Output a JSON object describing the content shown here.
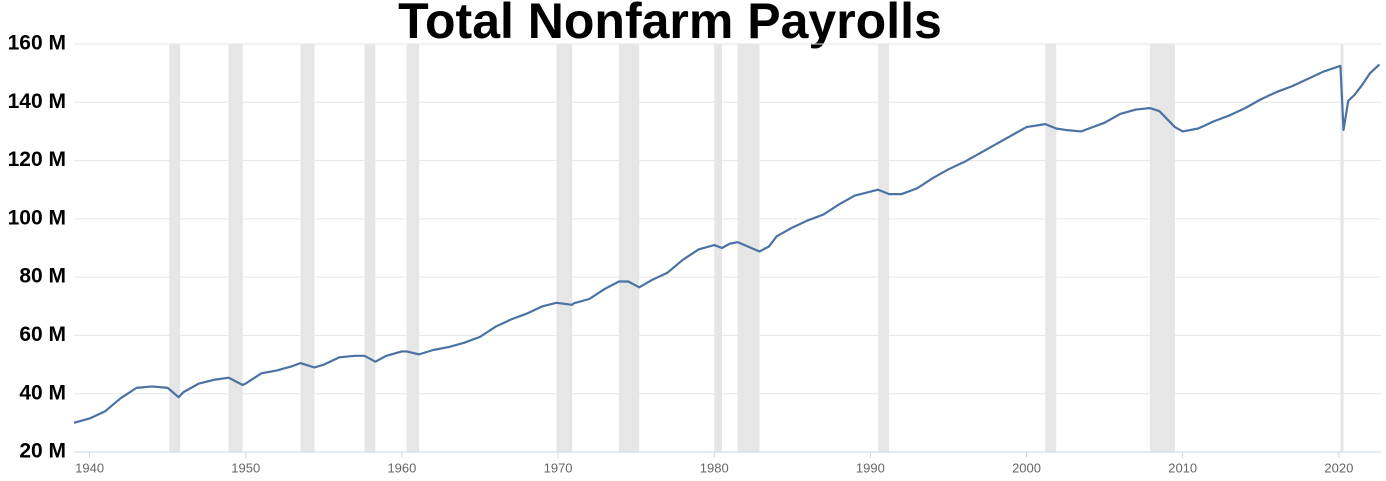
{
  "chart_data": {
    "type": "line",
    "title": "Total Nonfarm Payrolls",
    "x": [
      1939,
      1940,
      1941,
      1942,
      1943,
      1944,
      1945,
      1945.7,
      1946,
      1947,
      1948,
      1948.9,
      1949.8,
      1950,
      1951,
      1952,
      1953,
      1953.5,
      1954.4,
      1955,
      1956,
      1957,
      1957.6,
      1958.3,
      1959,
      1960,
      1960.3,
      1961.1,
      1962,
      1963,
      1964,
      1965,
      1966,
      1967,
      1968,
      1969,
      1969.9,
      1970.9,
      1971,
      1972,
      1973,
      1973.9,
      1974.5,
      1975.2,
      1976,
      1977,
      1978,
      1979,
      1980,
      1980.5,
      1981,
      1981.5,
      1982.9,
      1983.5,
      1984,
      1985,
      1986,
      1987,
      1988,
      1989,
      1990.5,
      1991.2,
      1992,
      1993,
      1994,
      1995,
      1996,
      1997,
      1998,
      1999,
      2000,
      2001.2,
      2001.9,
      2002.5,
      2003.5,
      2004,
      2005,
      2006,
      2007,
      2007.9,
      2008.5,
      2009.5,
      2010,
      2011,
      2012,
      2013,
      2014,
      2015,
      2016,
      2017,
      2018,
      2019,
      2020.1,
      2020.3,
      2020.6,
      2021,
      2021.5,
      2022,
      2022.6
    ],
    "values": [
      30,
      31.5,
      34,
      38.5,
      42,
      42.5,
      42,
      38.8,
      40.5,
      43.5,
      44.8,
      45.5,
      43,
      43.5,
      47,
      48,
      49.5,
      50.5,
      49,
      50,
      52.5,
      53,
      53,
      51,
      53,
      54.5,
      54.5,
      53.5,
      55,
      56,
      57.5,
      59.5,
      63,
      65.5,
      67.5,
      70,
      71.2,
      70.5,
      71,
      72.5,
      76,
      78.5,
      78.5,
      76.5,
      79,
      81.5,
      86,
      89.5,
      91,
      90,
      91.5,
      92,
      88.8,
      90.5,
      94,
      97,
      99.5,
      101.5,
      105,
      108,
      110,
      108.5,
      108.5,
      110.5,
      114,
      117,
      119.5,
      122.5,
      125.5,
      128.5,
      131.5,
      132.5,
      131,
      130.5,
      130,
      131,
      133,
      136,
      137.5,
      138,
      137,
      131.5,
      130,
      131,
      133.5,
      135.5,
      138,
      141,
      143.5,
      145.5,
      148,
      150.5,
      152.5,
      130.5,
      140.5,
      142.5,
      146,
      150,
      153
    ],
    "color": "#4a72a3",
    "recessions": [
      [
        1945.1,
        1945.8
      ],
      [
        1948.9,
        1949.8
      ],
      [
        1953.5,
        1954.4
      ],
      [
        1957.6,
        1958.3
      ],
      [
        1960.3,
        1961.1
      ],
      [
        1969.9,
        1970.9
      ],
      [
        1973.9,
        1975.2
      ],
      [
        1980.0,
        1980.5
      ],
      [
        1981.5,
        1982.9
      ],
      [
        1990.5,
        1991.2
      ],
      [
        2001.2,
        2001.9
      ],
      [
        2007.9,
        2009.5
      ],
      [
        2020.1,
        2020.3
      ]
    ],
    "recession_color": "#e6e6e6",
    "xlim": [
      1939,
      2022.7
    ],
    "xticks": [
      1940,
      1950,
      1960,
      1970,
      1980,
      1990,
      2000,
      2010,
      2020
    ],
    "ylim": [
      20,
      160
    ],
    "yticks": [
      {
        "value": 20,
        "label": "20 M"
      },
      {
        "value": 40,
        "label": "40 M"
      },
      {
        "value": 60,
        "label": "60 M"
      },
      {
        "value": 80,
        "label": "80 M"
      },
      {
        "value": 100,
        "label": "100 M"
      },
      {
        "value": 120,
        "label": "120 M"
      },
      {
        "value": 140,
        "label": "140 M"
      },
      {
        "value": 160,
        "label": "160 M"
      }
    ],
    "grid": true
  }
}
